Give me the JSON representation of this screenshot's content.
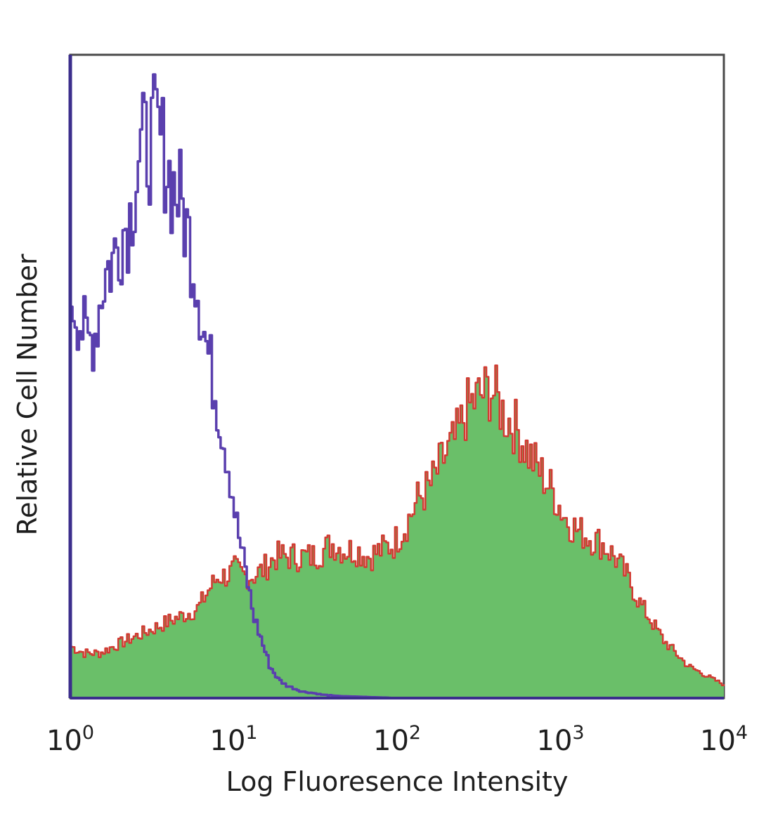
{
  "chart_data": {
    "type": "area",
    "xlabel": "Log Fluoresence Intensity",
    "ylabel": "Relative Cell Number",
    "x_scale": "log",
    "xlim": [
      1,
      10000
    ],
    "ylim": [
      0,
      100
    ],
    "y_ticks_shown": false,
    "grid": false,
    "legend": "none",
    "x_ticks": [
      {
        "value": 1,
        "base": "10",
        "exp": "0"
      },
      {
        "value": 10,
        "base": "10",
        "exp": "1"
      },
      {
        "value": 100,
        "base": "10",
        "exp": "2"
      },
      {
        "value": 1000,
        "base": "10",
        "exp": "3"
      },
      {
        "value": 10000,
        "base": "10",
        "exp": "4"
      }
    ],
    "series": [
      {
        "style": "outline",
        "color": "#5a3fae",
        "x": [
          1,
          1.1,
          1.25,
          1.4,
          1.6,
          1.8,
          2,
          2.3,
          2.6,
          3,
          3.3,
          3.7,
          4.1,
          4.6,
          5.2,
          5.8,
          6.5,
          7.3,
          8.2,
          9.2,
          10.3,
          11.6,
          13,
          14.6,
          16.4,
          18.4,
          20.6,
          23.1,
          26,
          30,
          35,
          45,
          60,
          100,
          10000
        ],
        "y": [
          63,
          60,
          55,
          57,
          66,
          68,
          72,
          75,
          85,
          86,
          88,
          85,
          80,
          78,
          72,
          66,
          57,
          50,
          43,
          36,
          27,
          20,
          13,
          9,
          5,
          3,
          2,
          1.5,
          1,
          0.8,
          0.5,
          0.3,
          0.2,
          0,
          0
        ]
      },
      {
        "style": "filled",
        "color": "#6abf69",
        "edge_color": "#d23a32",
        "x": [
          1,
          1.2,
          1.5,
          1.8,
          2.2,
          2.7,
          3.3,
          4,
          5,
          6,
          7,
          8,
          9,
          10,
          11.5,
          13,
          15,
          17.8,
          21,
          25,
          30,
          35,
          40,
          47,
          56,
          66,
          79,
          94,
          112,
          133,
          158,
          188,
          224,
          266,
          316,
          376,
          447,
          531,
          631,
          750,
          891,
          1059,
          1259,
          1496,
          1778,
          2113,
          2512,
          2985,
          3548,
          4217,
          5012,
          5957,
          7079,
          8414,
          10000
        ],
        "y": [
          8,
          7,
          7,
          8,
          9,
          10,
          11,
          12,
          13,
          14,
          17,
          19,
          19,
          20,
          19,
          19,
          20,
          22,
          22,
          22,
          22,
          23,
          24,
          23,
          23,
          22,
          23,
          24,
          27,
          31,
          33,
          37,
          40,
          45,
          47,
          48,
          44,
          42,
          38,
          35,
          32,
          28,
          26,
          25,
          24,
          22,
          19,
          15,
          12,
          9,
          7,
          5,
          4,
          3,
          2
        ]
      }
    ]
  }
}
